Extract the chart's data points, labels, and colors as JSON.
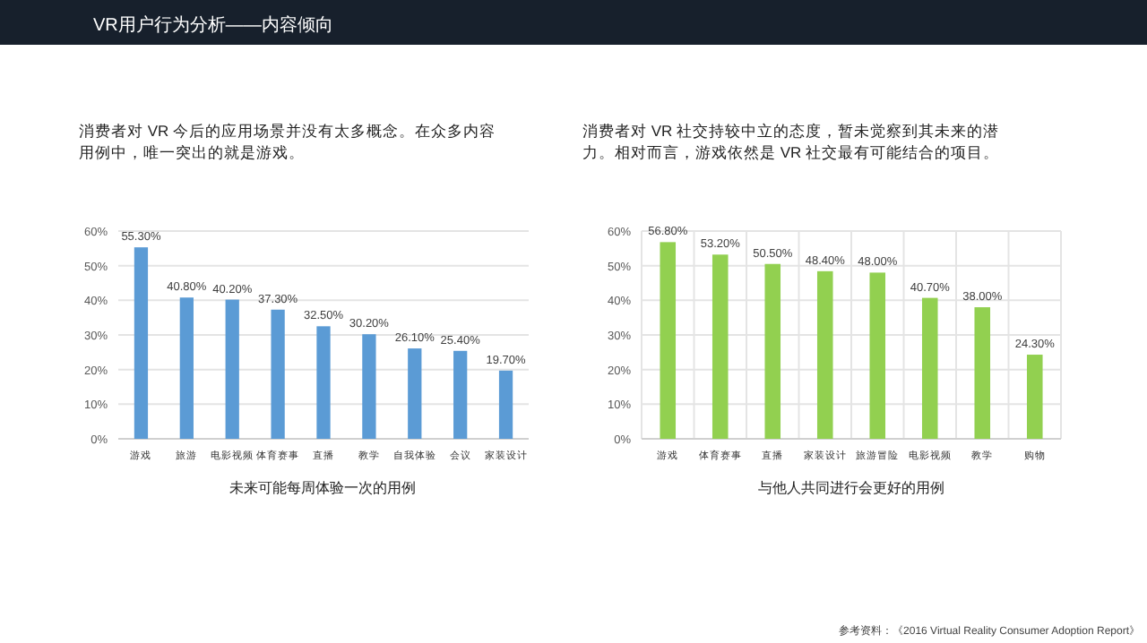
{
  "chart_data": [
    {
      "type": "bar",
      "title": "消费者对 VR 今后的应用场景并没有太多概念。在众多内容用例中，唯一突出的就是游戏。",
      "xlabel": "未来可能每周体验一次的用例",
      "annotations": [
        "VR用户行为分析——内容倾向"
      ],
      "categories": [
        "游戏",
        "旅游",
        "电影视频",
        "体育赛事",
        "直播",
        "教学",
        "自我体验",
        "会议",
        "家装设计"
      ],
      "values": [
        55.3,
        40.8,
        40.2,
        37.3,
        32.5,
        30.2,
        26.1,
        25.4,
        19.7
      ],
      "color": "#5b9bd5",
      "value_labels": [
        "55.30%",
        "40.80%",
        "40.20%",
        "37.30%",
        "32.50%",
        "30.20%",
        "26.10%",
        "25.40%",
        "19.70%"
      ],
      "ylim": [
        0,
        60
      ],
      "yticks": [
        {
          "value": 0,
          "label": "0%"
        },
        {
          "value": 10,
          "label": "10%"
        },
        {
          "value": 20,
          "label": "20%"
        },
        {
          "value": 30,
          "label": "30%"
        },
        {
          "value": 40,
          "label": "40%"
        },
        {
          "value": 50,
          "label": "50%"
        },
        {
          "value": 60,
          "label": "60%"
        }
      ],
      "grid": "y"
    },
    {
      "type": "bar",
      "title": "消费者对 VR 社交持较中立的态度，暂未觉察到其未来的潜力。相对而言，游戏依然是 VR 社交最有可能结合的项目。",
      "xlabel": "与他人共同进行会更好的用例",
      "annotations": [
        "参考资料：《2016 Virtual Reality Consumer Adoption Report》"
      ],
      "categories": [
        "游戏",
        "体育赛事",
        "直播",
        "家装设计",
        "旅游冒险",
        "电影视频",
        "教学",
        "购物"
      ],
      "values": [
        56.8,
        53.2,
        50.5,
        48.4,
        48.0,
        40.7,
        38.0,
        24.3
      ],
      "color": "#92d050",
      "value_labels": [
        "56.80%",
        "53.20%",
        "50.50%",
        "48.40%",
        "48.00%",
        "40.70%",
        "38.00%",
        "24.30%"
      ],
      "ylim": [
        0,
        60
      ],
      "yticks": [
        {
          "value": 0,
          "label": "0%"
        },
        {
          "value": 10,
          "label": "10%"
        },
        {
          "value": 20,
          "label": "20%"
        },
        {
          "value": 30,
          "label": "30%"
        },
        {
          "value": 40,
          "label": "40%"
        },
        {
          "value": 50,
          "label": "50%"
        },
        {
          "value": 60,
          "label": "60%"
        }
      ],
      "grid": true
    }
  ]
}
